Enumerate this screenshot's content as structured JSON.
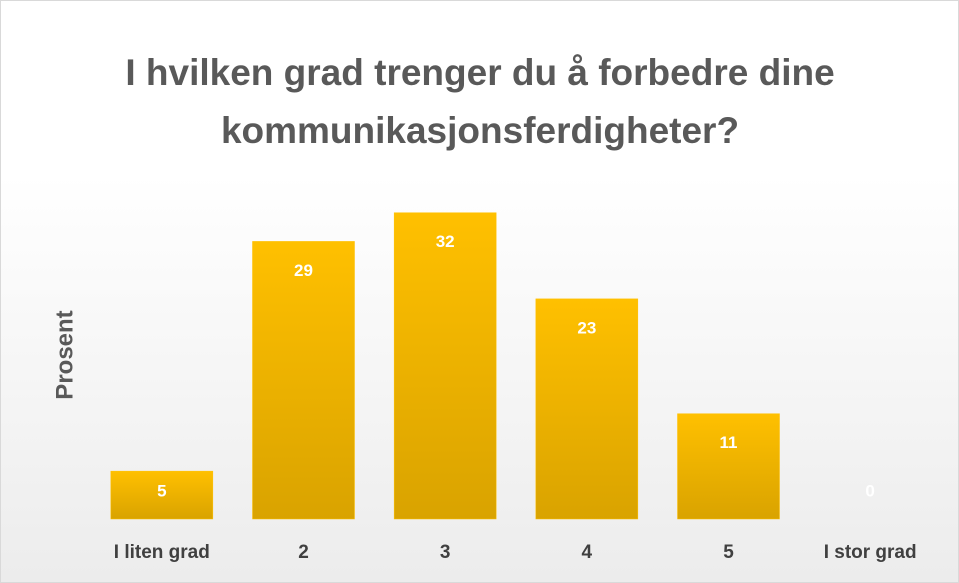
{
  "chart_data": {
    "type": "bar",
    "title": "I hvilken grad trenger du å forbedre dine kommunikasjonsferdigheter?",
    "y_label": "Prosent",
    "categories": [
      "I liten grad",
      "2",
      "3",
      "4",
      "5",
      "I stor grad"
    ],
    "values": [
      5,
      29,
      32,
      23,
      11,
      0
    ],
    "color": "#ffc000",
    "ylim": [
      0,
      35
    ]
  }
}
